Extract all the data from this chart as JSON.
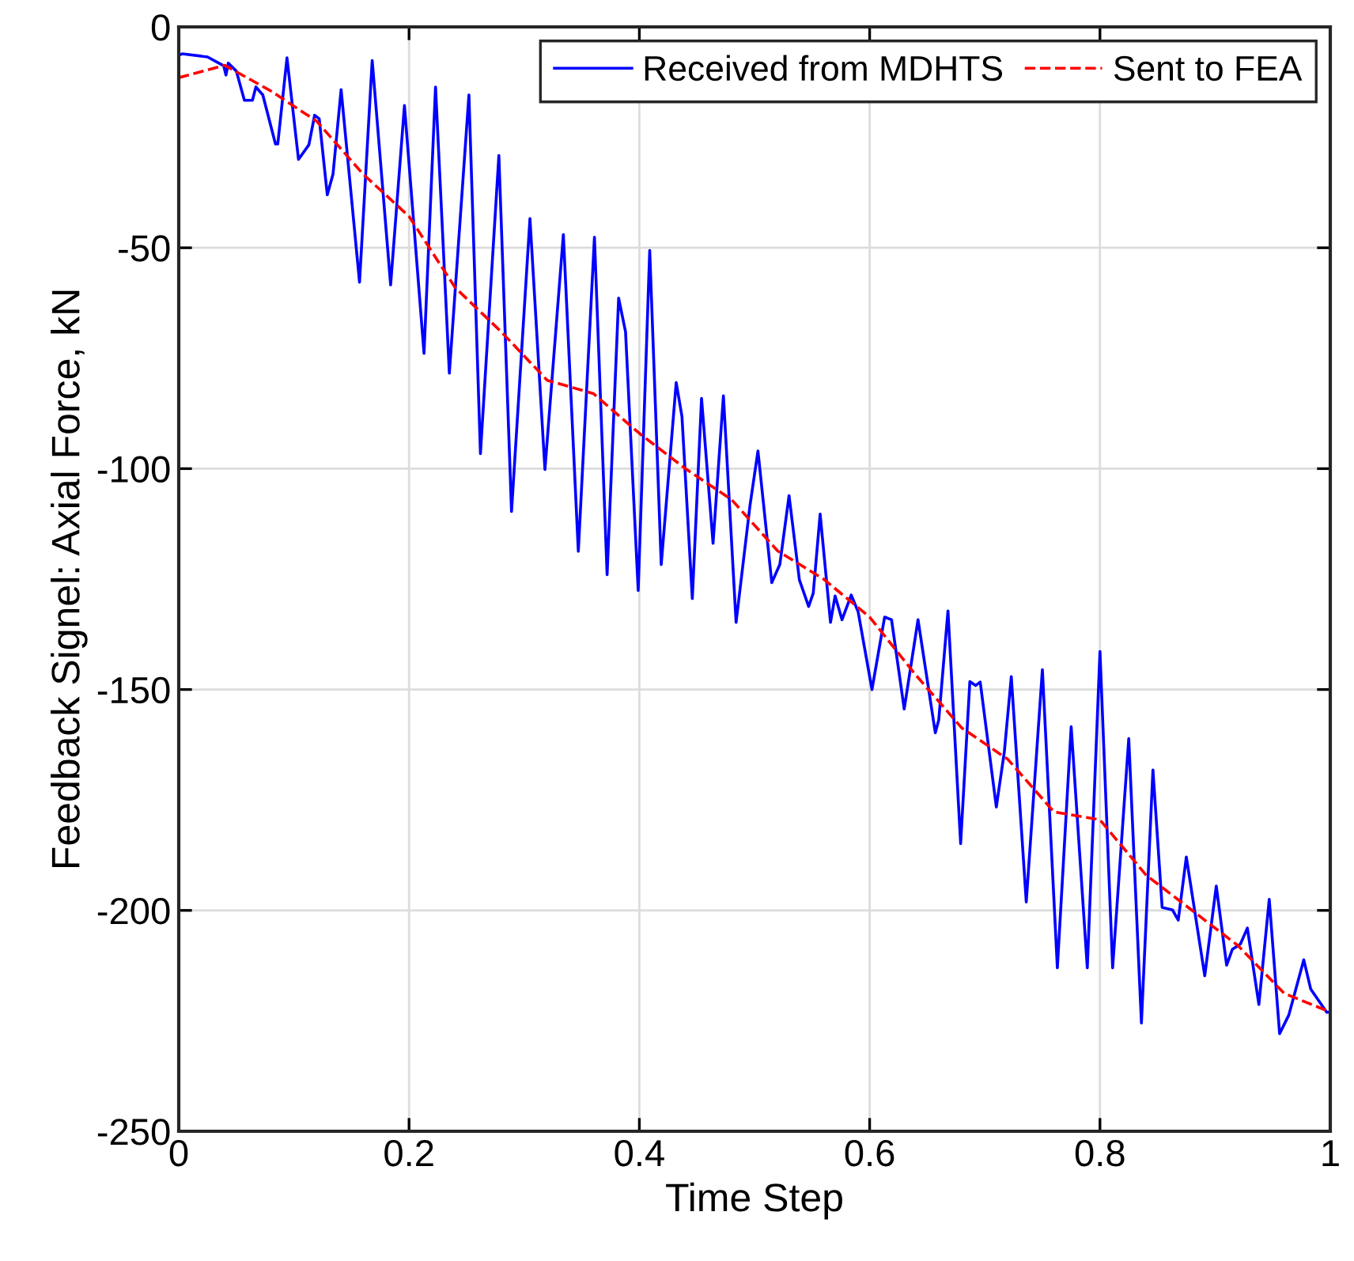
{
  "chart_data": {
    "type": "line",
    "xlabel": "Time Step",
    "ylabel": "Feedback Signel: Axial Force, kN",
    "xlim": [
      0,
      1
    ],
    "ylim": [
      -250,
      0
    ],
    "xticks": [
      0,
      0.2,
      0.4,
      0.6,
      0.8,
      1
    ],
    "yticks": [
      -250,
      -200,
      -150,
      -100,
      -50,
      0
    ],
    "grid": true,
    "legend": "top right",
    "series": [
      {
        "name": "Received from MDHTS",
        "color": "#0000ff",
        "line_style": "solid",
        "x": [
          0,
          0.003,
          0.025,
          0.039,
          0.041,
          0.043,
          0.05,
          0.057,
          0.064,
          0.067,
          0.073,
          0.084,
          0.086,
          0.094,
          0.104,
          0.113,
          0.118,
          0.122,
          0.129,
          0.134,
          0.141,
          0.157,
          0.168,
          0.184,
          0.196,
          0.213,
          0.223,
          0.235,
          0.252,
          0.262,
          0.278,
          0.289,
          0.305,
          0.318,
          0.334,
          0.347,
          0.361,
          0.372,
          0.382,
          0.388,
          0.399,
          0.409,
          0.419,
          0.432,
          0.437,
          0.446,
          0.454,
          0.464,
          0.473,
          0.484,
          0.496,
          0.503,
          0.515,
          0.522,
          0.53,
          0.539,
          0.547,
          0.551,
          0.557,
          0.566,
          0.57,
          0.576,
          0.584,
          0.59,
          0.602,
          0.613,
          0.619,
          0.63,
          0.642,
          0.657,
          0.66,
          0.668,
          0.679,
          0.687,
          0.692,
          0.696,
          0.71,
          0.717,
          0.723,
          0.736,
          0.75,
          0.763,
          0.775,
          0.789,
          0.8,
          0.811,
          0.825,
          0.836,
          0.846,
          0.854,
          0.863,
          0.868,
          0.875,
          0.891,
          0.901,
          0.91,
          0.915,
          0.922,
          0.928,
          0.938,
          0.947,
          0.956,
          0.964,
          0.977,
          0.983,
          0.997,
          1.0
        ],
        "values": [
          -6.4,
          -6.1,
          -6.8,
          -8.8,
          -10.9,
          -8.2,
          -10,
          -16.6,
          -16.6,
          -13.6,
          -15.4,
          -26.5,
          -26.5,
          -7,
          -30,
          -26.7,
          -20,
          -20.8,
          -38,
          -33.3,
          -14.2,
          -57.8,
          -7.6,
          -58.4,
          -17.8,
          -73.9,
          -13.6,
          -78.4,
          -15.4,
          -96.6,
          -29.1,
          -109.7,
          -43.4,
          -100.2,
          -47,
          -118.7,
          -47.6,
          -124,
          -61.4,
          -69,
          -127.6,
          -50.6,
          -121.7,
          -80.5,
          -88.2,
          -129.4,
          -84.1,
          -116.9,
          -83.5,
          -134.8,
          -108.5,
          -96,
          -125.8,
          -121.7,
          -106.1,
          -125.2,
          -131.2,
          -128.2,
          -110.3,
          -134.8,
          -128.8,
          -134.2,
          -128.6,
          -132.4,
          -150,
          -133.6,
          -134.2,
          -154.4,
          -134.2,
          -159.8,
          -156.9,
          -132.2,
          -184.9,
          -148.2,
          -149.1,
          -148.3,
          -176.6,
          -164,
          -147.1,
          -198.1,
          -145.5,
          -213,
          -158.4,
          -213,
          -141.4,
          -213,
          -161.1,
          -225.5,
          -168.2,
          -199.3,
          -199.9,
          -202.2,
          -187.9,
          -214.8,
          -194.5,
          -212.4,
          -208.8,
          -207.6,
          -204,
          -221.3,
          -197.5,
          -227.9,
          -223.7,
          -211.2,
          -217.8,
          -223.1,
          -223
        ]
      },
      {
        "name": "Sent to FEA",
        "color": "#ff0000",
        "line_style": "dashed",
        "x": [
          0,
          0.04,
          0.08,
          0.12,
          0.16,
          0.2,
          0.24,
          0.28,
          0.32,
          0.36,
          0.4,
          0.44,
          0.48,
          0.52,
          0.56,
          0.6,
          0.64,
          0.68,
          0.72,
          0.76,
          0.8,
          0.84,
          0.88,
          0.92,
          0.96,
          1.0
        ],
        "values": [
          -11.5,
          -8.7,
          -14.5,
          -21.4,
          -33.3,
          -42.9,
          -59,
          -69,
          -80,
          -83,
          -92,
          -100,
          -107,
          -118.6,
          -125,
          -133.6,
          -146.7,
          -158.7,
          -165.8,
          -177.7,
          -179.5,
          -192,
          -200,
          -208,
          -218.8,
          -223
        ]
      }
    ]
  }
}
